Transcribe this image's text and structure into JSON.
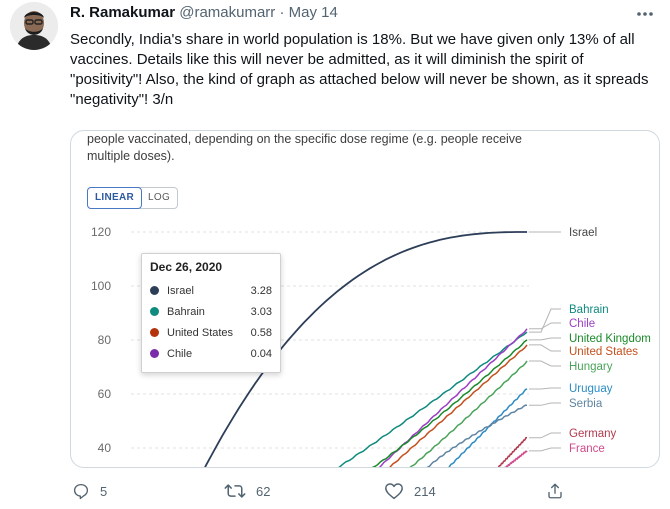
{
  "tweet": {
    "author_name": "R. Ramakumar",
    "handle": "@ramakumarr",
    "separator": "·",
    "date": "May 14",
    "more_icon": "more-icon",
    "text": "Secondly, India's share in world population is 18%. But we have given only 13% of all vaccines. Details like this will never be admitted, as it will diminish the spirit of \"positivity\"! Also, the kind of graph as attached below will never be shown, as it spreads \"negativity\"! 3/n"
  },
  "actions": {
    "reply_count": "5",
    "retweet_count": "62",
    "like_count": "214"
  },
  "chart": {
    "caption": "people vaccinated, depending on the specific dose regime (e.g. people receive multiple doses).",
    "scale_options": [
      "LINEAR",
      "LOG"
    ],
    "active_scale": "LINEAR"
  },
  "chart_data": {
    "type": "line",
    "ylim": [
      30,
      125
    ],
    "yticks": [
      120,
      100,
      80,
      60,
      40
    ],
    "tooltip": {
      "date": "Dec 26, 2020",
      "rows": [
        {
          "name": "Israel",
          "value": "3.28",
          "color": "#2d3e59"
        },
        {
          "name": "Bahrain",
          "value": "3.03",
          "color": "#0f8a7e"
        },
        {
          "name": "United States",
          "value": "0.58",
          "color": "#b4330d"
        },
        {
          "name": "Chile",
          "value": "0.04",
          "color": "#7a2da8"
        }
      ]
    },
    "series": [
      {
        "name": "Israel",
        "color": "#2d3e59",
        "end_value": 120
      },
      {
        "name": "Bahrain",
        "color": "#0f8a7e",
        "end_value": 83
      },
      {
        "name": "Chile",
        "color": "#9b3fc4",
        "end_value": 84
      },
      {
        "name": "United Kingdom",
        "color": "#1a8a2a",
        "end_value": 80
      },
      {
        "name": "United States",
        "color": "#c4501d",
        "end_value": 78
      },
      {
        "name": "Hungary",
        "color": "#4aa35a",
        "end_value": 72
      },
      {
        "name": "Uruguay",
        "color": "#2c8cc4",
        "end_value": 62
      },
      {
        "name": "Serbia",
        "color": "#5f84a2",
        "end_value": 56
      },
      {
        "name": "Germany",
        "color": "#b13b4e",
        "end_value": 44
      },
      {
        "name": "France",
        "color": "#d04a8b",
        "end_value": 39
      }
    ]
  }
}
